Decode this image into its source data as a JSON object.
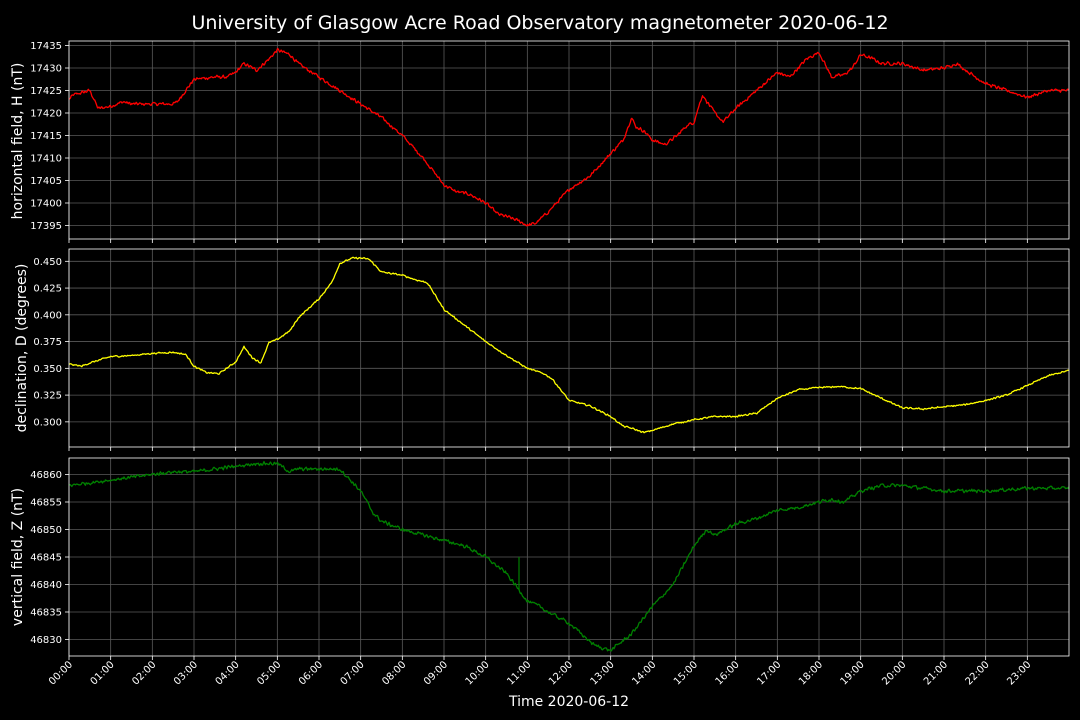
{
  "chart_data": {
    "type": "line",
    "title": "University of Glasgow Acre Road Observatory magnetometer 2020-06-12",
    "xlabel": "Time 2020-06-12",
    "x_tick_labels": [
      "00:00",
      "01:00",
      "02:00",
      "03:00",
      "04:00",
      "05:00",
      "06:00",
      "07:00",
      "08:00",
      "09:00",
      "10:00",
      "11:00",
      "12:00",
      "13:00",
      "14:00",
      "15:00",
      "16:00",
      "17:00",
      "18:00",
      "19:00",
      "20:00",
      "21:00",
      "22:00",
      "23:00"
    ],
    "xlim_hours": [
      0,
      24
    ],
    "grid": true,
    "panels": [
      {
        "ylabel": "horizontal field, H (nT)",
        "color": "#ff0000",
        "ylim": [
          17392,
          17436
        ],
        "yticks": [
          17395,
          17400,
          17405,
          17410,
          17415,
          17420,
          17425,
          17430,
          17435
        ],
        "tick_decimals": 0,
        "noise": 0.45,
        "x_hours": [
          0,
          0.1,
          0.5,
          0.7,
          1.0,
          1.3,
          1.5,
          2.0,
          2.5,
          2.6,
          2.8,
          3.0,
          3.5,
          3.8,
          4.0,
          4.2,
          4.5,
          4.8,
          5.0,
          5.3,
          5.5,
          6.0,
          6.5,
          7.0,
          7.5,
          8.0,
          8.5,
          9.0,
          9.3,
          9.6,
          10.0,
          10.3,
          10.5,
          10.8,
          11.0,
          11.2,
          11.5,
          12.0,
          12.5,
          13.0,
          13.3,
          13.5,
          13.6,
          13.8,
          14.0,
          14.3,
          14.6,
          14.8,
          15.0,
          15.2,
          15.5,
          15.7,
          16.0,
          16.5,
          17.0,
          17.3,
          17.5,
          17.7,
          18.0,
          18.3,
          18.6,
          18.8,
          19.0,
          19.3,
          19.5,
          20.0,
          20.5,
          21.0,
          21.3,
          21.6,
          22.0,
          22.5,
          23.0,
          23.5,
          24.0
        ],
        "values": [
          17423,
          17424,
          17425,
          17421,
          17421.5,
          17422.5,
          17422,
          17422,
          17422,
          17422.5,
          17425,
          17427.5,
          17428,
          17428,
          17429,
          17431,
          17429.5,
          17432,
          17434,
          17433,
          17431,
          17428,
          17425,
          17422,
          17419,
          17415,
          17410,
          17404,
          17402.5,
          17402,
          17400,
          17397.5,
          17397,
          17396,
          17395,
          17395.5,
          17398,
          17403,
          17406,
          17411,
          17414,
          17419,
          17417,
          17416,
          17414,
          17413,
          17415,
          17417,
          17418,
          17424,
          17420,
          17418,
          17421,
          17425,
          17429,
          17428,
          17430,
          17432,
          17433.5,
          17428,
          17428.5,
          17430,
          17433,
          17432,
          17431,
          17431,
          17429.5,
          17430,
          17431,
          17429,
          17426.5,
          17425,
          17423.5,
          17425,
          17425
        ]
      },
      {
        "ylabel": "declination, D (degrees)",
        "color": "#ffff00",
        "ylim": [
          0.2765,
          0.4615
        ],
        "yticks": [
          0.3,
          0.325,
          0.35,
          0.375,
          0.4,
          0.425,
          0.45
        ],
        "tick_decimals": 3,
        "noise": 0.0009,
        "x_hours": [
          0,
          0.3,
          0.5,
          1.0,
          1.5,
          2.0,
          2.5,
          2.8,
          3.0,
          3.3,
          3.6,
          4.0,
          4.2,
          4.4,
          4.6,
          4.8,
          5.0,
          5.3,
          5.5,
          6.0,
          6.3,
          6.5,
          6.8,
          7.0,
          7.2,
          7.5,
          8.0,
          8.3,
          8.6,
          9.0,
          9.5,
          10.0,
          10.5,
          11.0,
          11.4,
          11.6,
          12.0,
          12.5,
          13.0,
          13.3,
          13.5,
          13.8,
          14.0,
          14.5,
          15.0,
          15.5,
          16.0,
          16.5,
          17.0,
          17.5,
          18.0,
          18.5,
          19.0,
          19.5,
          20.0,
          20.5,
          21.0,
          21.5,
          22.0,
          22.5,
          23.0,
          23.5,
          24.0
        ],
        "values": [
          0.354,
          0.352,
          0.355,
          0.361,
          0.362,
          0.364,
          0.365,
          0.363,
          0.352,
          0.346,
          0.345,
          0.356,
          0.37,
          0.36,
          0.355,
          0.374,
          0.377,
          0.385,
          0.397,
          0.415,
          0.43,
          0.448,
          0.453,
          0.453,
          0.452,
          0.44,
          0.437,
          0.433,
          0.43,
          0.405,
          0.39,
          0.375,
          0.362,
          0.35,
          0.345,
          0.34,
          0.32,
          0.315,
          0.305,
          0.296,
          0.294,
          0.29,
          0.292,
          0.298,
          0.302,
          0.305,
          0.305,
          0.308,
          0.322,
          0.33,
          0.332,
          0.333,
          0.331,
          0.322,
          0.313,
          0.312,
          0.314,
          0.316,
          0.32,
          0.325,
          0.334,
          0.343,
          0.348
        ]
      },
      {
        "ylabel": "vertical field, Z (nT)",
        "color": "#008000",
        "ylim": [
          46827,
          46863
        ],
        "yticks": [
          46830,
          46835,
          46840,
          46845,
          46850,
          46855,
          46860
        ],
        "tick_decimals": 0,
        "noise": 0.4,
        "spike_hours": 10.8,
        "spike_top": 46845,
        "x_hours": [
          0,
          0.5,
          1.0,
          1.5,
          2.0,
          2.5,
          3.0,
          3.5,
          4.0,
          4.5,
          5.0,
          5.3,
          5.5,
          6.0,
          6.5,
          7.0,
          7.3,
          7.5,
          8.0,
          8.5,
          9.0,
          9.5,
          10.0,
          10.5,
          11.0,
          11.3,
          11.5,
          12.0,
          12.3,
          12.6,
          13.0,
          13.5,
          14.0,
          14.5,
          15.0,
          15.3,
          15.5,
          16.0,
          16.5,
          17.0,
          17.5,
          18.0,
          18.3,
          18.6,
          19.0,
          19.5,
          20.0,
          20.5,
          21.0,
          22.0,
          23.0,
          24.0
        ],
        "values": [
          46858,
          46858.5,
          46859,
          46859.5,
          46860,
          46860.5,
          46860.5,
          46861,
          46861.5,
          46862,
          46862,
          46860.5,
          46861,
          46861,
          46861,
          46857,
          46853,
          46851.5,
          46850,
          46849,
          46848,
          46847,
          46845,
          46842,
          46837,
          46836,
          46835,
          46833,
          46831,
          46829,
          46828,
          46831,
          46836,
          46840,
          46847,
          46850,
          46849,
          46851,
          46852,
          46853.5,
          46854,
          46855,
          46855.5,
          46855,
          46857,
          46858,
          46858,
          46857.5,
          46857,
          46857,
          46857.5,
          46857.5
        ]
      }
    ]
  }
}
